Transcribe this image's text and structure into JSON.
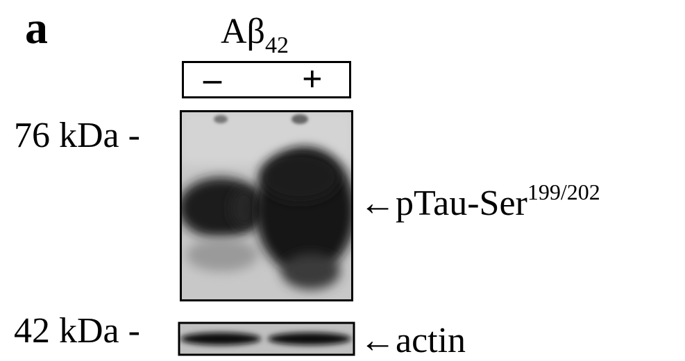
{
  "panel_letter": "a",
  "treatment": {
    "label": "Aβ",
    "subscript": "42"
  },
  "lanes": {
    "minus": "–",
    "plus": "+"
  },
  "markers": {
    "upper": "76 kDa -",
    "lower": "42 kDa -"
  },
  "bands": {
    "ptau": {
      "arrow": "←",
      "label": "pTau-Ser",
      "superscript": "199/202"
    },
    "actin": {
      "arrow": "←",
      "label": "actin"
    }
  }
}
